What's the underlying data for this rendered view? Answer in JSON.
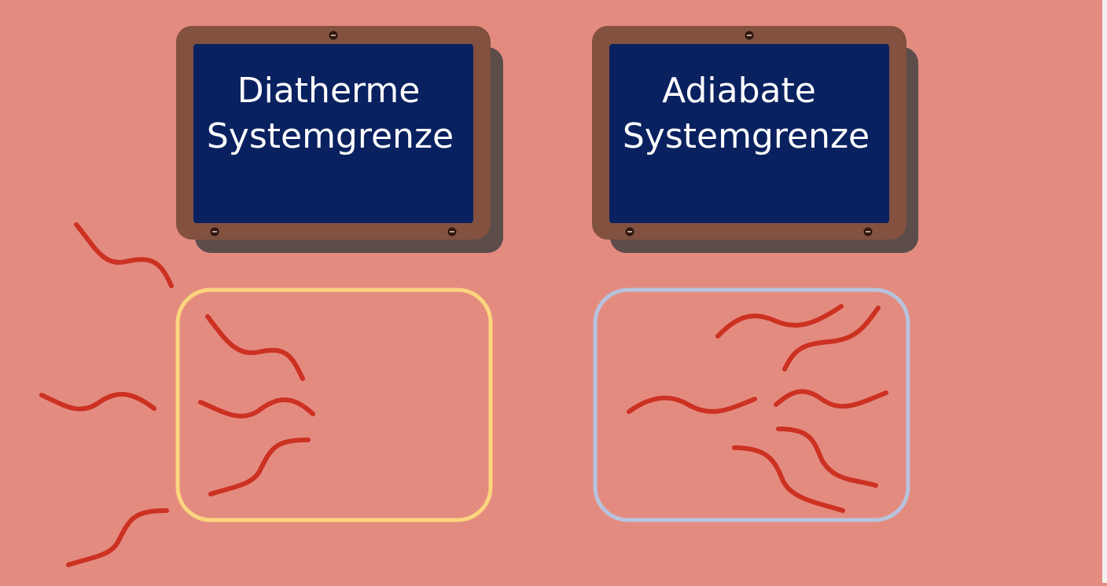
{
  "signs": [
    {
      "id": "diatherm",
      "line1": "Diatherme",
      "line2": "Systemgrenze"
    },
    {
      "id": "adiabat",
      "line1": "Adiabate",
      "line2": "Systemgrenze"
    }
  ],
  "colors": {
    "background": "#e48b80",
    "sign_frame": "#82513f",
    "sign_shadow": "#5c4d4b",
    "sign_face": "#0a2160",
    "sign_text": "#ffffff",
    "diatherm_boundary": "#fbd57e",
    "adiabat_boundary": "#b7c3dd",
    "heat_wave": "#cc3122"
  },
  "icons": {
    "heat_wave": "wavy-heat-line-icon",
    "screw": "screw-icon"
  }
}
